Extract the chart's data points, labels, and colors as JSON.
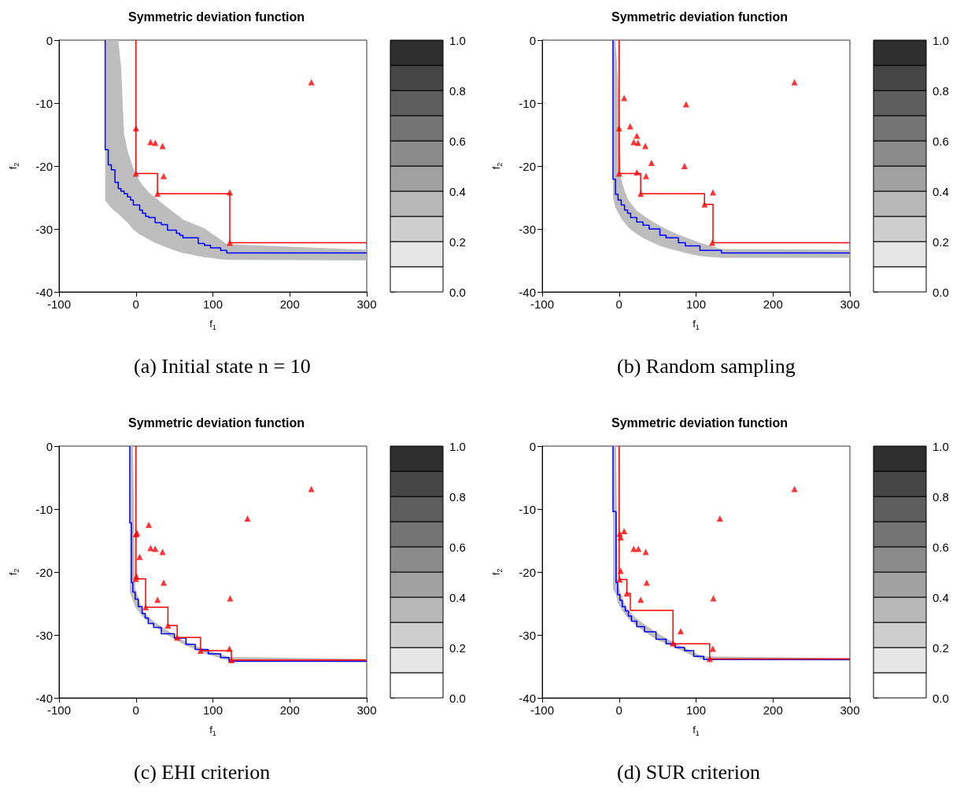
{
  "chart_data": [
    {
      "type": "scatter",
      "title": "Symmetric deviation function",
      "xlabel": "f$_{1}$",
      "ylabel": "f$_{2}$",
      "annotations": [
        "(a) Initial state n = 10"
      ],
      "xlim": [
        -100,
        300
      ],
      "ylim": [
        -40,
        0
      ],
      "xticks": [
        -100,
        0,
        100,
        200,
        300
      ],
      "yticks": [
        -40,
        -30,
        -20,
        -10,
        0
      ],
      "clim": [
        0,
        1
      ],
      "cticks": [
        {
          "value": 0,
          "label": "0.0"
        },
        {
          "value": 0.2,
          "label": "0.2"
        },
        {
          "value": 0.4,
          "label": "0.4"
        },
        {
          "value": 0.6,
          "label": "0.6"
        },
        {
          "value": 0.8,
          "label": "0.8"
        },
        {
          "value": 1,
          "label": "1.0"
        }
      ],
      "grid": false,
      "series": [
        {
          "type": "line",
          "color": "#0000ff",
          "marker": "none",
          "x": [
            -40,
            -40,
            -36,
            -36,
            -32,
            -32,
            -27.3,
            -27.3,
            -23,
            -23,
            -19.5,
            -19.5,
            -15.4,
            -15.4,
            -11,
            -11,
            -7,
            -7,
            -3.4,
            -3.4,
            4.8,
            4.8,
            8.5,
            8.5,
            12.6,
            12.6,
            16.7,
            16.7,
            24.9,
            24.9,
            33,
            33,
            41,
            41,
            52.6,
            52.6,
            57,
            57,
            61,
            61,
            81,
            81,
            89,
            89,
            97,
            97,
            110,
            110,
            118,
            118,
            300
          ],
          "values": [
            0,
            -17.4,
            -17.4,
            -19.8,
            -19.8,
            -20.6,
            -20.6,
            -22.6,
            -22.6,
            -23.6,
            -23.6,
            -24,
            -24,
            -24.4,
            -24.4,
            -24.9,
            -24.9,
            -25.4,
            -25.4,
            -26.2,
            -26.2,
            -27,
            -27,
            -27.5,
            -27.5,
            -28,
            -28,
            -28.2,
            -28.2,
            -29,
            -29,
            -29.3,
            -29.3,
            -30.2,
            -30.2,
            -30.7,
            -30.7,
            -31,
            -31,
            -31.4,
            -31.4,
            -32.3,
            -32.3,
            -32.6,
            -32.6,
            -33,
            -33,
            -33.4,
            -33.4,
            -33.8,
            -33.8
          ],
          "upper": [
            0,
            0,
            0,
            0,
            0,
            0,
            0,
            0,
            0,
            0,
            -4,
            -4,
            -14.9,
            -14.9,
            -17.5,
            -17.5,
            -19,
            -19,
            -20.4,
            -20.4,
            -22.4,
            -22.4,
            -23,
            -23,
            -23.6,
            -23.6,
            -24.2,
            -24.2,
            -25,
            -25,
            -25.8,
            -25.8,
            -26.6,
            -26.6,
            -27.7,
            -27.7,
            -28.1,
            -28.1,
            -28.5,
            -28.5,
            -29.5,
            -29.5,
            -29.9,
            -29.9,
            -30.6,
            -30.6,
            -31.7,
            -31.7,
            -32.4,
            -32.4,
            -33.3
          ],
          "lower": [
            -25.5,
            -25.5,
            -26.1,
            -26.1,
            -26.7,
            -26.7,
            -27.2,
            -27.2,
            -27.6,
            -27.6,
            -28,
            -28,
            -28.5,
            -28.5,
            -29,
            -29,
            -29.6,
            -29.6,
            -30.1,
            -30.1,
            -30.9,
            -30.9,
            -31.1,
            -31.1,
            -31.4,
            -31.4,
            -31.7,
            -31.7,
            -32.2,
            -32.2,
            -32.6,
            -32.6,
            -33,
            -33,
            -33.5,
            -33.5,
            -33.7,
            -33.7,
            -33.8,
            -33.8,
            -34.3,
            -34.3,
            -34.5,
            -34.5,
            -34.6,
            -34.6,
            -34.8,
            -34.8,
            -34.9,
            -34.9,
            -35
          ]
        },
        {
          "type": "line",
          "color": "#ff0000",
          "marker": "none",
          "x": [
            0,
            0,
            28,
            28,
            122,
            122,
            300
          ],
          "values": [
            0,
            -21.2,
            -21.2,
            -24.4,
            -24.4,
            -32.2,
            -32.2
          ]
        },
        {
          "color": "#ff0000",
          "marker": "triangle",
          "x": [
            0,
            0,
            28,
            122,
            122,
            228,
            19,
            25,
            34.5,
            36
          ],
          "values": [
            -14,
            -21.2,
            -24.4,
            -24.2,
            -32.2,
            -6.7,
            -16.2,
            -16.3,
            -16.8,
            -21.6
          ]
        }
      ]
    },
    {
      "type": "scatter",
      "title": "Symmetric deviation function",
      "xlabel": "f$_{1}$",
      "ylabel": "f$_{2}$",
      "annotations": [
        "(b) Random sampling"
      ],
      "xlim": [
        -100,
        300
      ],
      "ylim": [
        -40,
        0
      ],
      "xticks": [
        -100,
        0,
        100,
        200,
        300
      ],
      "yticks": [
        -40,
        -30,
        -20,
        -10,
        0
      ],
      "clim": [
        0,
        1
      ],
      "cticks": [
        {
          "value": 0,
          "label": "0.0"
        },
        {
          "value": 0.2,
          "label": "0.2"
        },
        {
          "value": 0.4,
          "label": "0.4"
        },
        {
          "value": 0.6,
          "label": "0.6"
        },
        {
          "value": 0.8,
          "label": "0.8"
        },
        {
          "value": 1,
          "label": "1.0"
        }
      ],
      "grid": false,
      "series": [
        {
          "type": "line",
          "color": "#0000ff",
          "marker": "none",
          "x": [
            -8,
            -8,
            -4.8,
            -4.8,
            -1.4,
            -1.4,
            2.7,
            2.7,
            7,
            7,
            11,
            11,
            15,
            15,
            23,
            23,
            31,
            31,
            39,
            39,
            53,
            53,
            61,
            61,
            77,
            77,
            86,
            86,
            105,
            105,
            133,
            133,
            300
          ],
          "values": [
            0,
            -22.1,
            -22.1,
            -24.5,
            -24.5,
            -25.4,
            -25.4,
            -26.2,
            -26.2,
            -27,
            -27,
            -27.5,
            -27.5,
            -28.2,
            -28.2,
            -28.9,
            -28.9,
            -29.4,
            -29.4,
            -30,
            -30,
            -31,
            -31,
            -31.4,
            -31.4,
            -32.2,
            -32.2,
            -32.7,
            -32.7,
            -33.4,
            -33.4,
            -33.8,
            -33.8
          ],
          "upper": [
            0,
            0,
            0,
            0,
            -6.3,
            -6.3,
            -22.1,
            -22.1,
            -23.8,
            -23.8,
            -25.2,
            -25.2,
            -25.9,
            -25.9,
            -27.1,
            -27.1,
            -27.8,
            -27.8,
            -28.5,
            -28.5,
            -29.5,
            -29.5,
            -30,
            -30,
            -30.9,
            -30.9,
            -31.3,
            -31.3,
            -32.2,
            -32.2,
            -33.2,
            -33.2,
            -33.3
          ],
          "lower": [
            -25,
            -25,
            -26.6,
            -26.6,
            -27.4,
            -27.4,
            -28.3,
            -28.3,
            -29,
            -29,
            -29.6,
            -29.6,
            -30.1,
            -30.1,
            -30.8,
            -30.8,
            -31.4,
            -31.4,
            -31.9,
            -31.9,
            -32.7,
            -32.7,
            -33,
            -33,
            -33.5,
            -33.5,
            -33.8,
            -33.8,
            -34.3,
            -34.3,
            -34.6,
            -34.6,
            -34.6
          ]
        },
        {
          "type": "line",
          "color": "#ff0000",
          "marker": "none",
          "x": [
            0,
            0,
            28,
            28,
            111,
            111,
            122,
            122,
            300
          ],
          "values": [
            0,
            -21.2,
            -21.2,
            -24.4,
            -24.4,
            -26.1,
            -26.1,
            -32.2,
            -32.2
          ]
        },
        {
          "color": "#ff0000",
          "marker": "triangle",
          "x": [
            0,
            0,
            28,
            111,
            122,
            121,
            228,
            6.5,
            87,
            14.3,
            23,
            19,
            24.5,
            34,
            42,
            85,
            23,
            35
          ],
          "values": [
            -14,
            -21.2,
            -24.4,
            -26.1,
            -24.2,
            -32.2,
            -6.7,
            -9.2,
            -10.2,
            -13.7,
            -15.2,
            -16.2,
            -16.3,
            -16.8,
            -19.5,
            -20,
            -21,
            -21.6
          ]
        }
      ]
    },
    {
      "type": "scatter",
      "title": "Symmetric deviation function",
      "xlabel": "f$_{1}$",
      "ylabel": "f$_{2}$",
      "annotations": [
        "(c) EHI criterion"
      ],
      "xlim": [
        -100,
        300
      ],
      "ylim": [
        -40,
        0
      ],
      "xticks": [
        -100,
        0,
        100,
        200,
        300
      ],
      "yticks": [
        -40,
        -30,
        -20,
        -10,
        0
      ],
      "clim": [
        0,
        1
      ],
      "cticks": [
        {
          "value": 0,
          "label": "0.0"
        },
        {
          "value": 0.2,
          "label": "0.2"
        },
        {
          "value": 0.4,
          "label": "0.4"
        },
        {
          "value": 0.6,
          "label": "0.6"
        },
        {
          "value": 0.8,
          "label": "0.8"
        },
        {
          "value": 1,
          "label": "1.0"
        }
      ],
      "grid": false,
      "series": [
        {
          "type": "line",
          "color": "#0000ff",
          "marker": "none",
          "x": [
            -8,
            -8,
            -5.8,
            -5.8,
            -4,
            -4,
            -1,
            -1,
            3,
            3,
            8,
            8,
            12,
            12,
            16,
            16,
            23,
            23,
            33,
            33,
            50,
            50,
            65,
            65,
            77,
            77,
            94,
            94,
            110,
            110,
            121,
            121,
            300
          ],
          "values": [
            0,
            -12.2,
            -12.2,
            -21.7,
            -21.7,
            -23.2,
            -23.2,
            -24.3,
            -24.3,
            -25.5,
            -25.5,
            -26.6,
            -26.6,
            -27.3,
            -27.3,
            -28.2,
            -28.2,
            -28.8,
            -28.8,
            -29.8,
            -29.8,
            -30.5,
            -30.5,
            -31.5,
            -31.5,
            -32.3,
            -32.3,
            -33,
            -33,
            -33.6,
            -33.6,
            -34.2,
            -34.2
          ],
          "upper": [
            0,
            0,
            0,
            0,
            0,
            0,
            -22.5,
            -22.5,
            -24,
            -24,
            -26,
            -26,
            -26.7,
            -26.7,
            -27.1,
            -27.1,
            -27.8,
            -27.8,
            -28.7,
            -28.7,
            -30,
            -30,
            -31.1,
            -31.1,
            -31.7,
            -31.7,
            -32.5,
            -32.5,
            -33.1,
            -33.1,
            -33.5,
            -33.5,
            -33.8
          ],
          "lower": [
            -23.2,
            -23.2,
            -23.9,
            -23.9,
            -24.5,
            -24.5,
            -25.5,
            -25.5,
            -26.2,
            -26.2,
            -27,
            -27,
            -27.5,
            -27.5,
            -27.9,
            -27.9,
            -28.5,
            -28.5,
            -29.4,
            -29.4,
            -30.7,
            -30.7,
            -31.7,
            -31.7,
            -32.3,
            -32.3,
            -33.1,
            -33.1,
            -33.7,
            -33.7,
            -34.1,
            -34.1,
            -34.3
          ]
        },
        {
          "type": "line",
          "color": "#ff0000",
          "marker": "none",
          "x": [
            0,
            0,
            12.6,
            12.6,
            41.6,
            41.6,
            53.6,
            53.6,
            84,
            84,
            124,
            124,
            300
          ],
          "values": [
            0,
            -21.1,
            -21.1,
            -25.6,
            -25.6,
            -28.5,
            -28.5,
            -30.4,
            -30.4,
            -32.5,
            -32.5,
            -34,
            -34
          ]
        },
        {
          "color": "#ff0000",
          "marker": "triangle",
          "x": [
            228,
            145,
            16.7,
            1.4,
            0,
            19,
            25,
            34.5,
            4.8,
            0.7,
            0,
            36,
            28,
            122.5,
            12.6,
            41.6,
            53.6,
            84,
            121.5,
            124
          ],
          "values": [
            -6.8,
            -11.5,
            -12.5,
            -13.8,
            -14,
            -16.2,
            -16.3,
            -16.8,
            -17.6,
            -20.7,
            -21.1,
            -21.7,
            -24.4,
            -24.2,
            -25.6,
            -28.5,
            -30.4,
            -32.5,
            -32.2,
            -34
          ]
        }
      ]
    },
    {
      "type": "scatter",
      "title": "Symmetric deviation function",
      "xlabel": "f$_{1}$",
      "ylabel": "f$_{2}$",
      "annotations": [
        "(d) SUR criterion"
      ],
      "xlim": [
        -100,
        300
      ],
      "ylim": [
        -40,
        0
      ],
      "xticks": [
        -100,
        0,
        100,
        200,
        300
      ],
      "yticks": [
        -40,
        -30,
        -20,
        -10,
        0
      ],
      "clim": [
        0,
        1
      ],
      "cticks": [
        {
          "value": 0,
          "label": "0.0"
        },
        {
          "value": 0.2,
          "label": "0.2"
        },
        {
          "value": 0.4,
          "label": "0.4"
        },
        {
          "value": 0.6,
          "label": "0.6"
        },
        {
          "value": 0.8,
          "label": "0.8"
        },
        {
          "value": 1,
          "label": "1.0"
        }
      ],
      "grid": false,
      "series": [
        {
          "type": "line",
          "color": "#0000ff",
          "marker": "none",
          "x": [
            -8,
            -8,
            -4,
            -4,
            -2,
            -2,
            1,
            1,
            4,
            4,
            8,
            8,
            12,
            12,
            16,
            16,
            23,
            23,
            33,
            33,
            48,
            48,
            61,
            61,
            73,
            73,
            85,
            85,
            97,
            97,
            110,
            110,
            300
          ],
          "values": [
            0,
            -10.4,
            -10.4,
            -21.7,
            -21.7,
            -23.6,
            -23.6,
            -24.5,
            -24.5,
            -25.5,
            -25.5,
            -26.2,
            -26.2,
            -27,
            -27,
            -27.8,
            -27.8,
            -28.7,
            -28.7,
            -29.5,
            -29.5,
            -30.7,
            -30.7,
            -31.4,
            -31.4,
            -32,
            -32,
            -32.5,
            -32.5,
            -33.4,
            -33.4,
            -33.9,
            -33.9
          ],
          "upper": [
            0,
            0,
            0,
            0,
            -21,
            -21,
            -23,
            -23,
            -24,
            -24,
            -25.3,
            -25.3,
            -26,
            -26,
            -26.6,
            -26.6,
            -27.4,
            -27.4,
            -28.3,
            -28.3,
            -29.6,
            -29.6,
            -30.5,
            -30.5,
            -31.3,
            -31.3,
            -32,
            -32,
            -32.8,
            -32.8,
            -33.4,
            -33.4,
            -33.7
          ],
          "lower": [
            -22.8,
            -22.8,
            -23.5,
            -23.5,
            -24.8,
            -24.8,
            -25.5,
            -25.5,
            -26.1,
            -26.1,
            -26.8,
            -26.8,
            -27.4,
            -27.4,
            -27.8,
            -27.8,
            -28.6,
            -28.6,
            -29.5,
            -29.5,
            -30.7,
            -30.7,
            -31.4,
            -31.4,
            -32.1,
            -32.1,
            -32.7,
            -32.7,
            -33.4,
            -33.4,
            -34,
            -34,
            -34.1
          ]
        },
        {
          "type": "line",
          "color": "#ff0000",
          "marker": "none",
          "x": [
            0,
            0,
            10,
            10,
            14.6,
            14.6,
            70,
            70,
            117.7,
            117.7,
            300
          ],
          "values": [
            0,
            -21.2,
            -21.2,
            -23.4,
            -23.4,
            -26.1,
            -26.1,
            -31.4,
            -31.4,
            -33.8,
            -33.8
          ]
        },
        {
          "color": "#ff0000",
          "marker": "triangle",
          "x": [
            228,
            131,
            6.5,
            0.7,
            2,
            19,
            25,
            34.5,
            2,
            0.7,
            35.8,
            10,
            28,
            122.5,
            80,
            70,
            121.8,
            117.7
          ],
          "values": [
            -6.8,
            -11.5,
            -13.5,
            -13.9,
            -14.5,
            -16.3,
            -16.3,
            -16.8,
            -19.8,
            -21.2,
            -21.7,
            -23.4,
            -24.4,
            -24.2,
            -29.4,
            -31.3,
            -32.2,
            -33.8
          ]
        }
      ]
    }
  ]
}
